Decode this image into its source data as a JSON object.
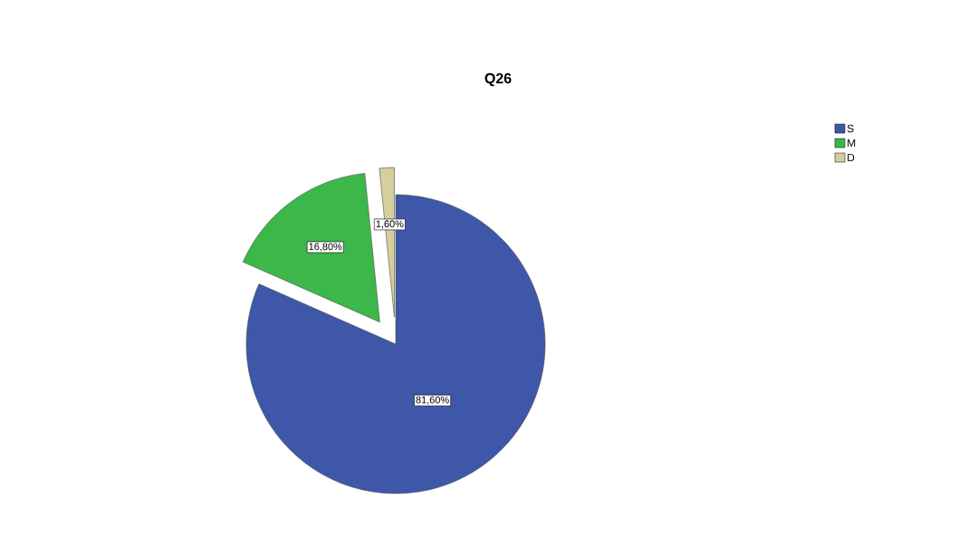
{
  "chart_data": {
    "type": "pie",
    "title": "Q26",
    "categories": [
      "S",
      "M",
      "D"
    ],
    "values": [
      81.6,
      16.8,
      1.6
    ],
    "colors": [
      "#3f57a8",
      "#3cb84a",
      "#d6cf9c"
    ],
    "value_labels": [
      "81,60%",
      "16,80%",
      "1,60%"
    ],
    "legend": "top right"
  }
}
